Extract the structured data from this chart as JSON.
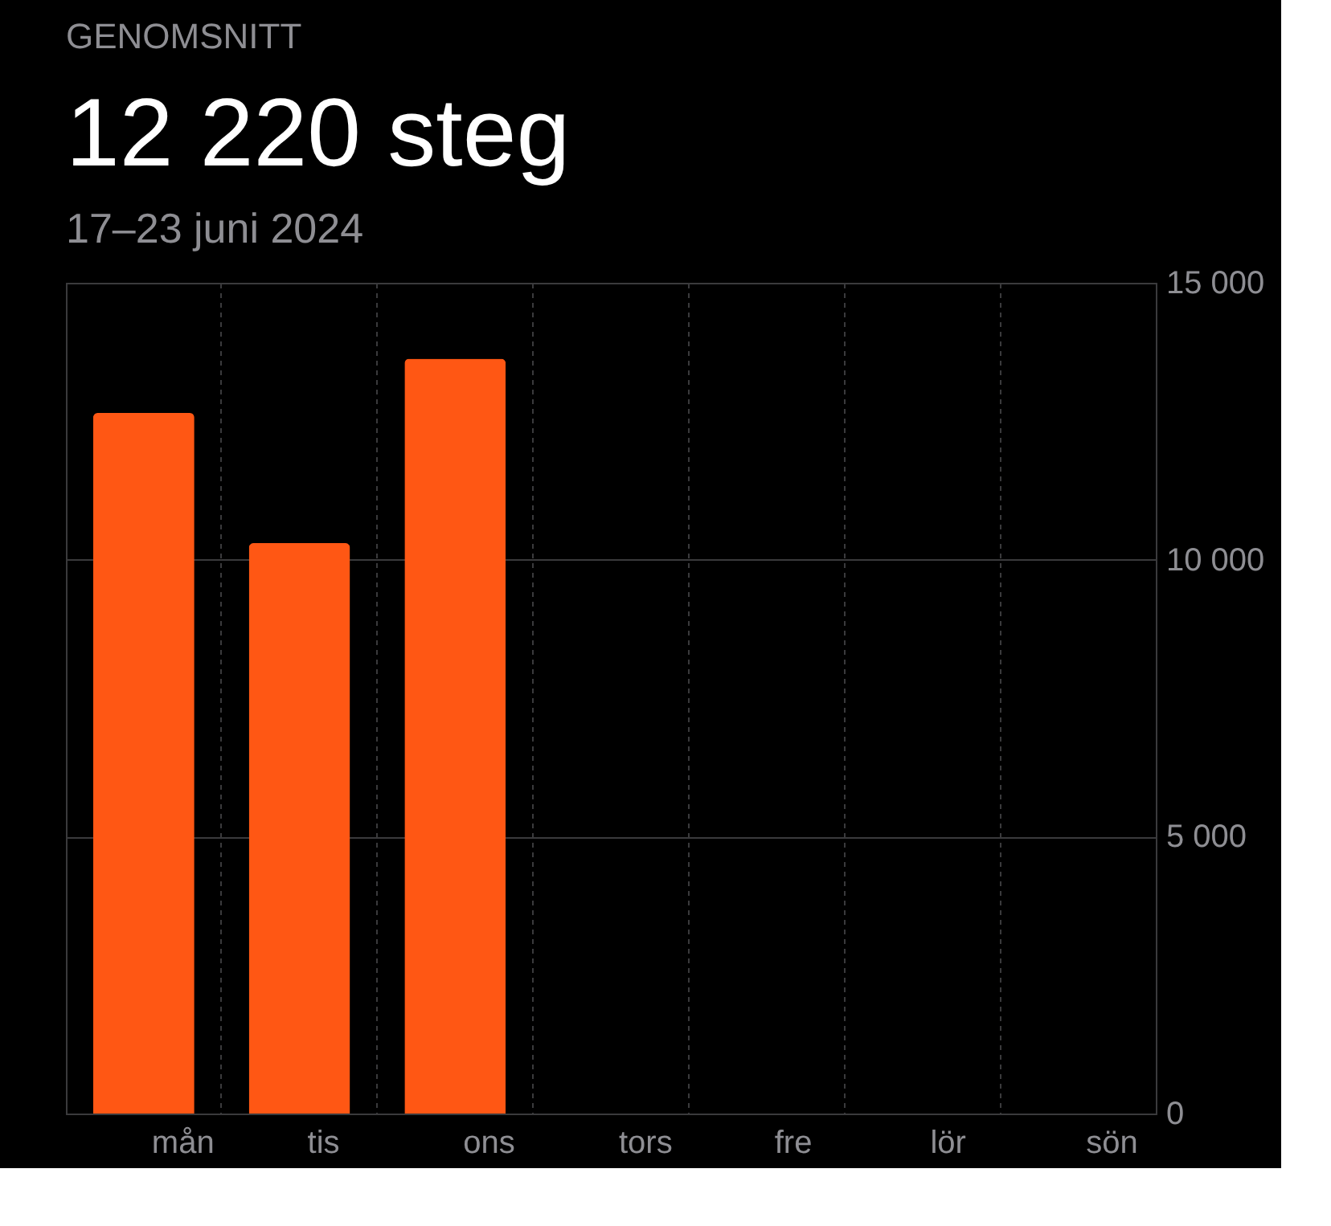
{
  "chart_data": {
    "type": "bar",
    "title": "12 220 steg",
    "subtitle": "17–23 juni 2024",
    "annotations": [
      "GENOMSNITT"
    ],
    "categories": [
      "mån",
      "tis",
      "ons",
      "tors",
      "fre",
      "lör",
      "sön"
    ],
    "values": [
      12650,
      10300,
      13630,
      null,
      null,
      null,
      null
    ],
    "color": "#ff5714",
    "ylim": [
      0,
      15000
    ],
    "yticks": [
      {
        "value": 0,
        "label": "0"
      },
      {
        "value": 5000,
        "label": "5 000"
      },
      {
        "value": 10000,
        "label": "10 000"
      },
      {
        "value": 15000,
        "label": "15 000"
      }
    ],
    "grid": true
  }
}
